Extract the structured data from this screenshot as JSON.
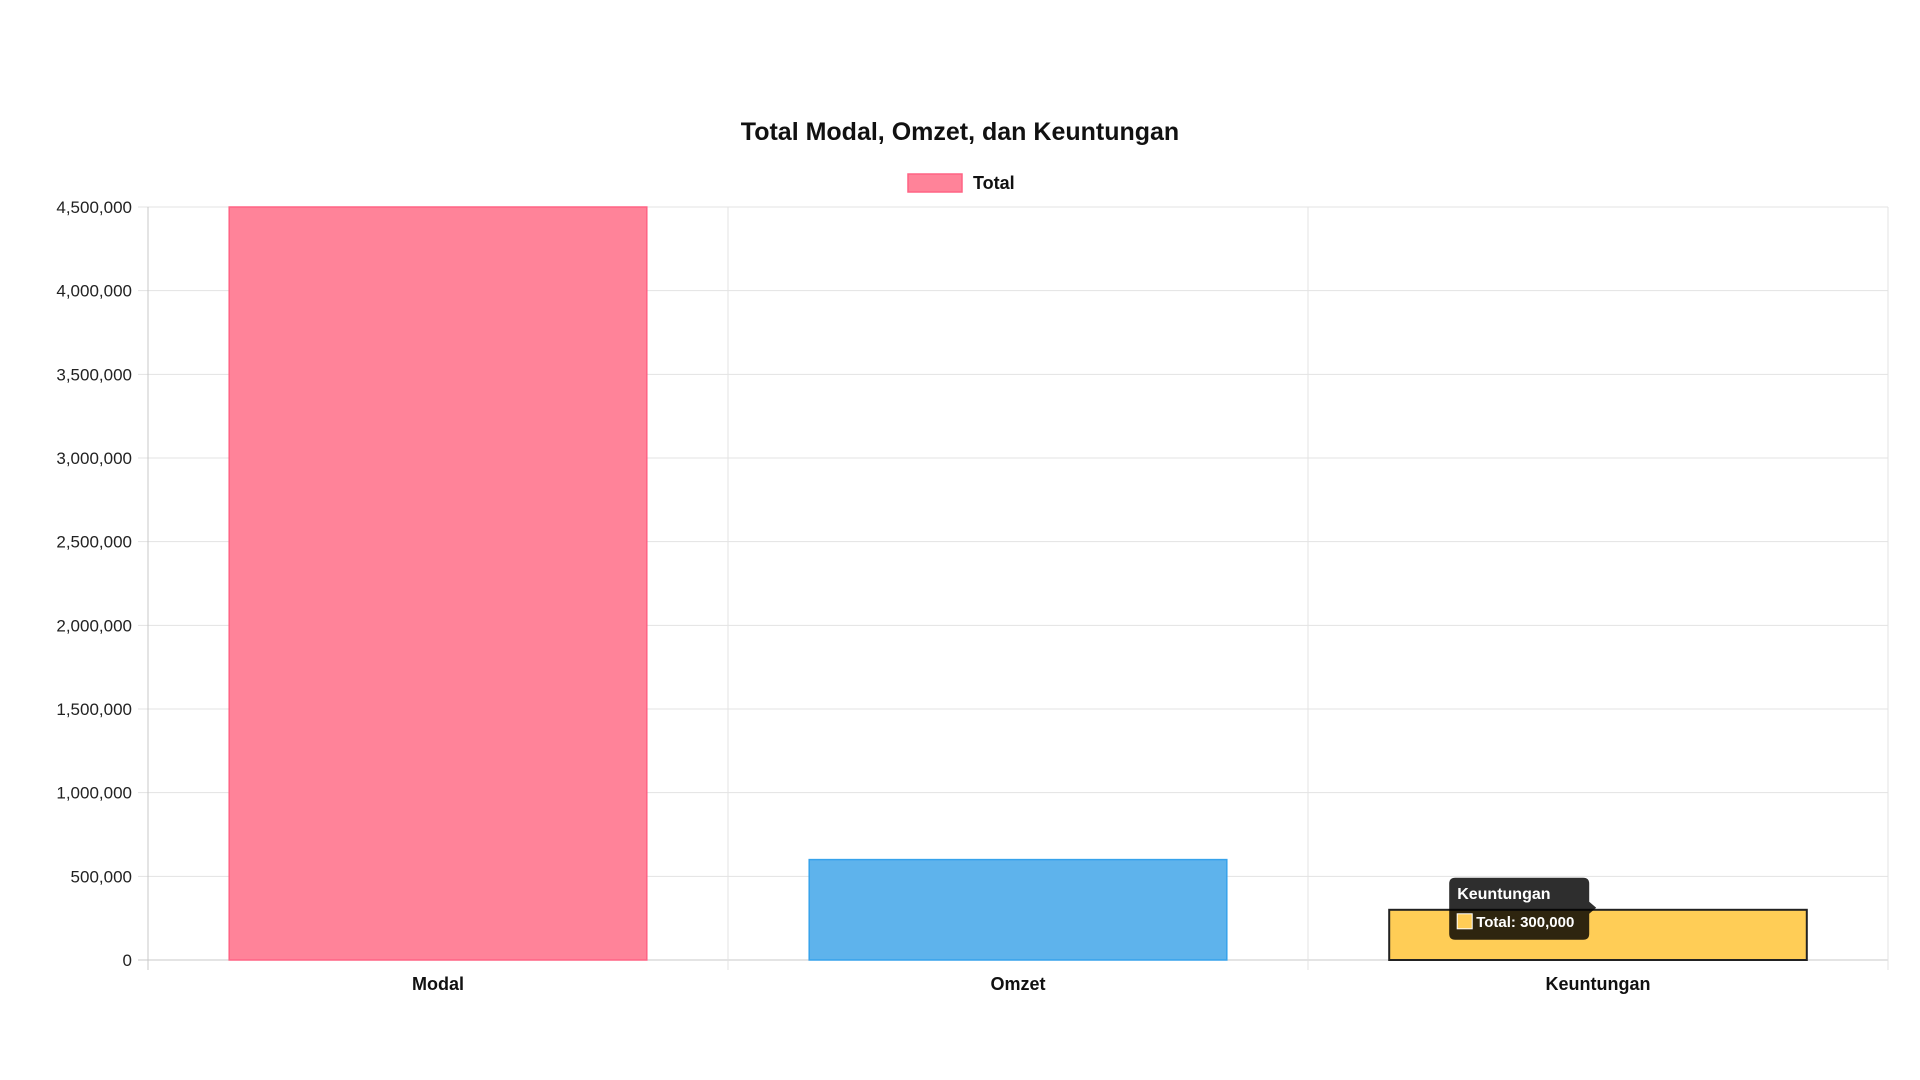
{
  "chart_data": {
    "type": "bar",
    "title": "Total Modal, Omzet, dan Keuntungan",
    "categories": [
      "Modal",
      "Omzet",
      "Keuntungan"
    ],
    "series": [
      {
        "name": "Total",
        "values": [
          4500000,
          600000,
          300000
        ]
      }
    ],
    "bar_colors": [
      "#ff8399",
      "#5eb3ec",
      "#ffcd56"
    ],
    "bar_border_colors": [
      "#ff6384",
      "#36a2eb",
      "#222222"
    ],
    "legend": {
      "label": "Total",
      "color": "#ff8399",
      "border": "#ff6384",
      "position": "top"
    },
    "ylim": [
      0,
      4500000
    ],
    "y_ticks": [
      "0",
      "500,000",
      "1,000,000",
      "1,500,000",
      "2,000,000",
      "2,500,000",
      "3,000,000",
      "3,500,000",
      "4,000,000",
      "4,500,000"
    ],
    "grid": true,
    "tooltip": {
      "title": "Keuntungan",
      "body": "Total: 300,000",
      "swatch_color": "#ffcd56"
    }
  }
}
